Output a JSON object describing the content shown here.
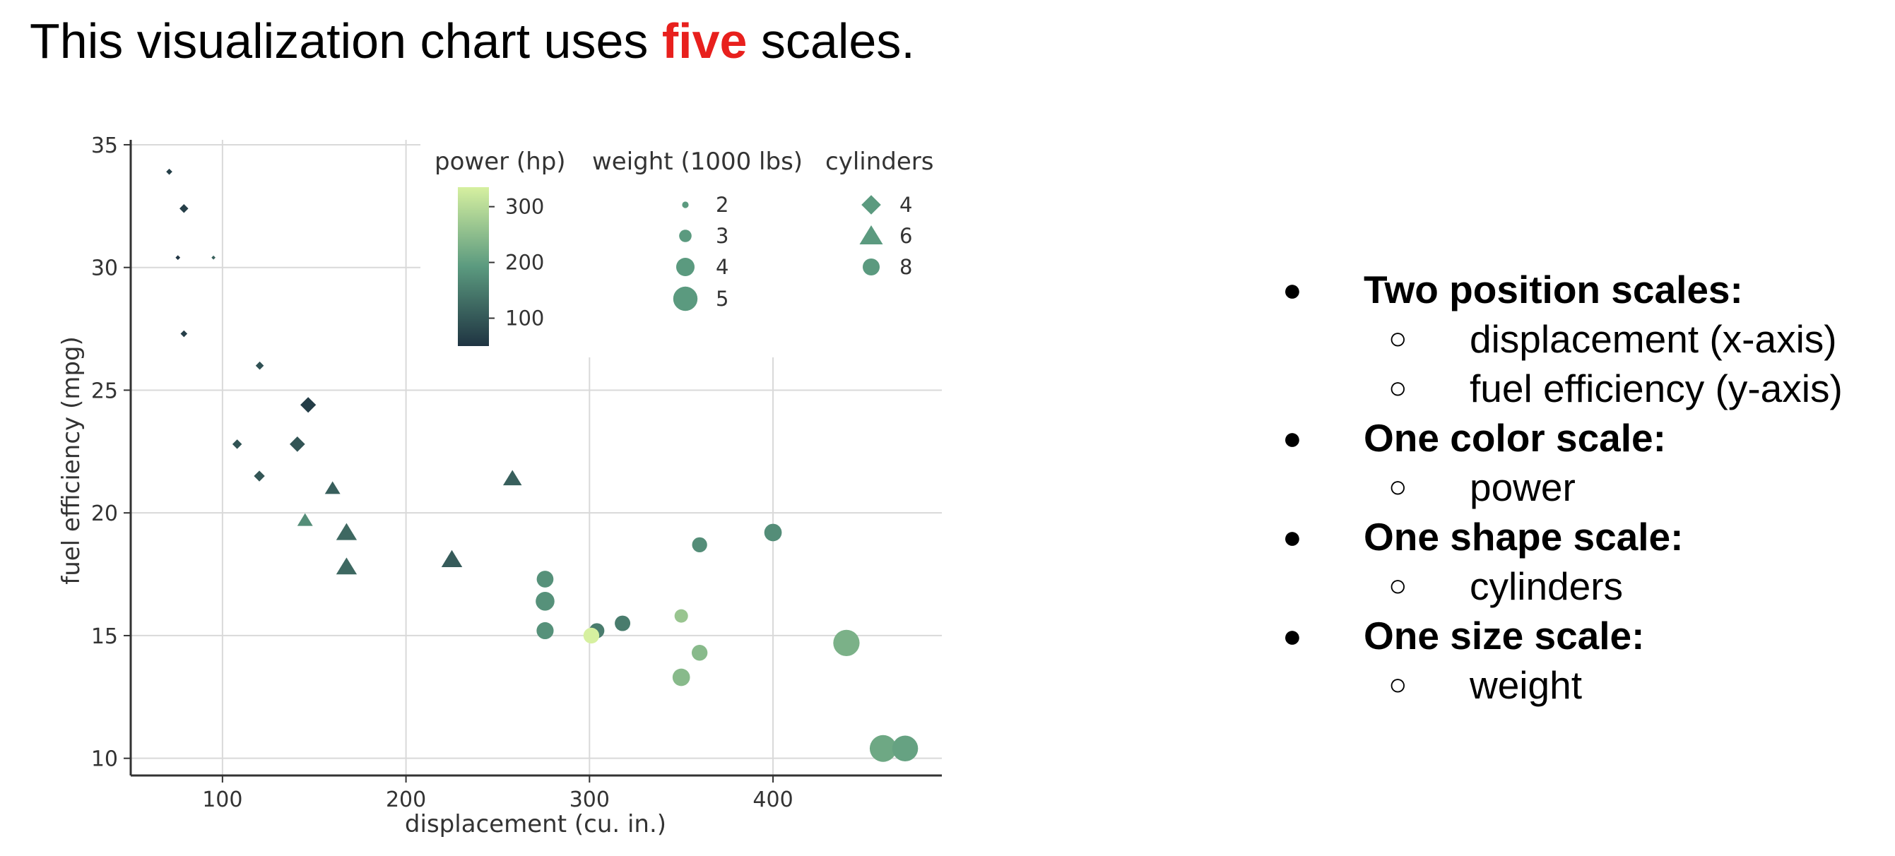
{
  "heading": {
    "before": "This visualization chart uses ",
    "highlight": "five",
    "after": " scales.",
    "highlight_color": "#e8201d"
  },
  "bullets": [
    {
      "label": "Two position scales:",
      "items": [
        "displacement (x-axis)",
        "fuel efficiency (y-axis)"
      ]
    },
    {
      "label": "One color scale:",
      "items": [
        "power"
      ]
    },
    {
      "label": "One shape scale:",
      "items": [
        "cylinders"
      ]
    },
    {
      "label": "One size scale:",
      "items": [
        "weight"
      ]
    }
  ],
  "chart_data": {
    "type": "scatter",
    "xlabel": "displacement (cu. in.)",
    "ylabel": "fuel efficiency (mpg)",
    "xlim": [
      50,
      492
    ],
    "ylim": [
      9.3,
      35.2
    ],
    "xticks": [
      100,
      200,
      300,
      400
    ],
    "yticks": [
      10,
      15,
      20,
      25,
      30,
      35
    ],
    "grid": true,
    "legend_placement": "top",
    "color_scale": {
      "title": "power (hp)",
      "domain": [
        50,
        335
      ],
      "colors": [
        "#1f3442",
        "#5b9a7f",
        "#d6f0a0"
      ],
      "ticks": [
        100,
        200,
        300
      ]
    },
    "size_scale": {
      "title": "weight (1000 lbs)",
      "ticks": [
        2,
        3,
        4,
        5
      ],
      "color": "#5b9a7f"
    },
    "shape_scale": {
      "title": "cylinders",
      "items": [
        {
          "label": "4",
          "shape": "diamond"
        },
        {
          "label": "6",
          "shape": "triangle"
        },
        {
          "label": "8",
          "shape": "circle"
        }
      ],
      "color": "#5b9a7f"
    },
    "points": [
      {
        "x": 71,
        "y": 33.9,
        "cyl": 4,
        "hp": 65,
        "wt": 1.8
      },
      {
        "x": 79,
        "y": 32.4,
        "cyl": 4,
        "hp": 66,
        "wt": 2.2
      },
      {
        "x": 75.7,
        "y": 30.4,
        "cyl": 4,
        "hp": 52,
        "wt": 1.6
      },
      {
        "x": 95.1,
        "y": 30.4,
        "cyl": 4,
        "hp": 113,
        "wt": 1.5
      },
      {
        "x": 79,
        "y": 27.3,
        "cyl": 4,
        "hp": 66,
        "wt": 1.9
      },
      {
        "x": 120.3,
        "y": 26.0,
        "cyl": 4,
        "hp": 91,
        "wt": 2.1
      },
      {
        "x": 146.7,
        "y": 24.4,
        "cyl": 4,
        "hp": 62,
        "wt": 3.2
      },
      {
        "x": 108,
        "y": 22.8,
        "cyl": 4,
        "hp": 93,
        "wt": 2.3
      },
      {
        "x": 140.8,
        "y": 22.8,
        "cyl": 4,
        "hp": 95,
        "wt": 3.15
      },
      {
        "x": 120.1,
        "y": 21.5,
        "cyl": 4,
        "hp": 97,
        "wt": 2.5
      },
      {
        "x": 160,
        "y": 21.0,
        "cyl": 6,
        "hp": 110,
        "wt": 2.8
      },
      {
        "x": 258,
        "y": 21.4,
        "cyl": 6,
        "hp": 110,
        "wt": 3.2
      },
      {
        "x": 145,
        "y": 19.7,
        "cyl": 6,
        "hp": 175,
        "wt": 2.8
      },
      {
        "x": 167.6,
        "y": 19.2,
        "cyl": 6,
        "hp": 123,
        "wt": 3.44
      },
      {
        "x": 167.6,
        "y": 17.8,
        "cyl": 6,
        "hp": 123,
        "wt": 3.44
      },
      {
        "x": 225,
        "y": 18.1,
        "cyl": 6,
        "hp": 105,
        "wt": 3.46
      },
      {
        "x": 275.8,
        "y": 17.3,
        "cyl": 8,
        "hp": 180,
        "wt": 3.73
      },
      {
        "x": 275.8,
        "y": 16.4,
        "cyl": 8,
        "hp": 180,
        "wt": 4.07
      },
      {
        "x": 275.8,
        "y": 15.2,
        "cyl": 8,
        "hp": 180,
        "wt": 3.78
      },
      {
        "x": 304,
        "y": 15.2,
        "cyl": 8,
        "hp": 150,
        "wt": 3.44
      },
      {
        "x": 301,
        "y": 15.0,
        "cyl": 8,
        "hp": 335,
        "wt": 3.57
      },
      {
        "x": 318,
        "y": 15.5,
        "cyl": 8,
        "hp": 150,
        "wt": 3.52
      },
      {
        "x": 350,
        "y": 15.8,
        "cyl": 8,
        "hp": 264,
        "wt": 3.17
      },
      {
        "x": 350,
        "y": 13.3,
        "cyl": 8,
        "hp": 245,
        "wt": 3.84
      },
      {
        "x": 360,
        "y": 14.3,
        "cyl": 8,
        "hp": 245,
        "wt": 3.57
      },
      {
        "x": 360,
        "y": 18.7,
        "cyl": 8,
        "hp": 175,
        "wt": 3.44
      },
      {
        "x": 400,
        "y": 19.2,
        "cyl": 8,
        "hp": 175,
        "wt": 3.85
      },
      {
        "x": 440,
        "y": 14.7,
        "cyl": 8,
        "hp": 230,
        "wt": 5.34
      },
      {
        "x": 460,
        "y": 10.4,
        "cyl": 8,
        "hp": 215,
        "wt": 5.42
      },
      {
        "x": 472,
        "y": 10.4,
        "cyl": 8,
        "hp": 205,
        "wt": 5.25
      }
    ]
  }
}
